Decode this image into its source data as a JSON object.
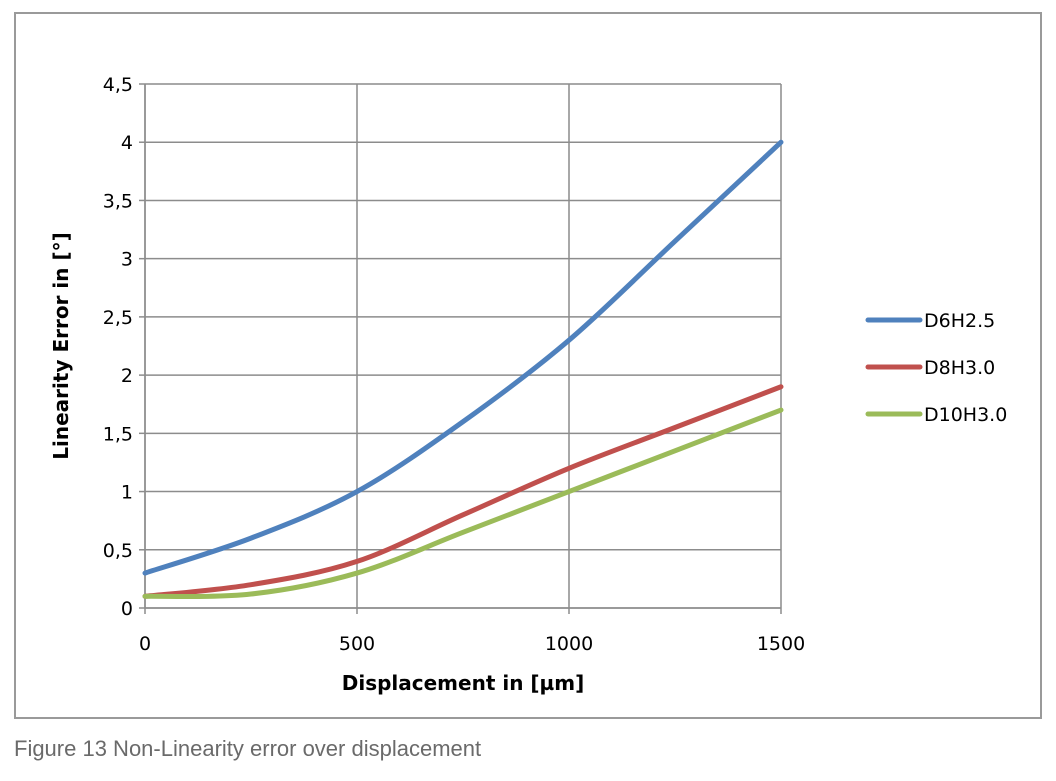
{
  "caption": "Figure 13 Non-Linearity error over displacement",
  "chart_data": {
    "type": "line",
    "title": "",
    "xlabel": "Displacement in [µm]",
    "ylabel": "Linearity Error in [°]",
    "xlim": [
      0,
      1500
    ],
    "ylim": [
      0,
      4.5
    ],
    "x_ticks": [
      0,
      500,
      1000,
      1500
    ],
    "x_tick_labels": [
      "0",
      "500",
      "1000",
      "1500"
    ],
    "y_ticks": [
      0,
      0.5,
      1,
      1.5,
      2,
      2.5,
      3,
      3.5,
      4,
      4.5
    ],
    "y_tick_labels": [
      "0",
      "0,5",
      "1",
      "1,5",
      "2",
      "2,5",
      "3",
      "3,5",
      "4",
      "4,5"
    ],
    "grid": true,
    "legend_position": "right",
    "x": [
      0,
      250,
      500,
      750,
      1000,
      1250,
      1500
    ],
    "series": [
      {
        "name": "D6H2.5",
        "color": "#4f81bd",
        "values": [
          0.3,
          0.6,
          1.0,
          1.6,
          2.3,
          3.15,
          4.0
        ]
      },
      {
        "name": "D8H3.0",
        "color": "#c0504d",
        "values": [
          0.1,
          0.2,
          0.4,
          0.8,
          1.2,
          1.55,
          1.9
        ]
      },
      {
        "name": "D10H3.0",
        "color": "#9bbb59",
        "values": [
          0.1,
          0.12,
          0.3,
          0.65,
          1.0,
          1.35,
          1.7
        ]
      }
    ]
  }
}
